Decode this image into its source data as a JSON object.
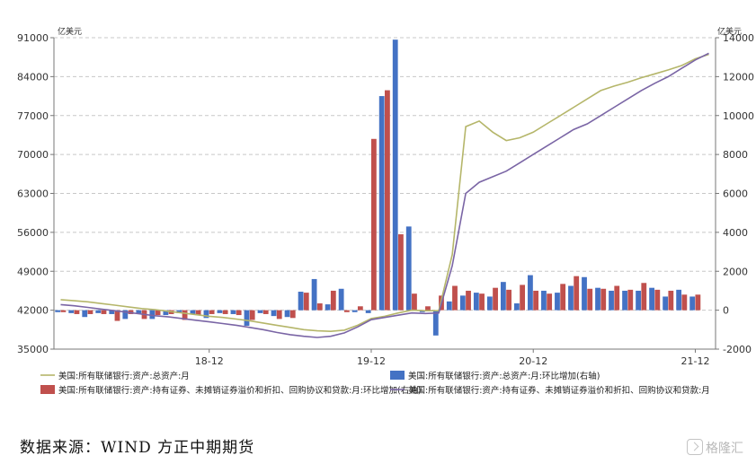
{
  "source_text": "数据来源：WIND 方正中期期货",
  "watermark": {
    "icon": "gelonghui-logo-icon",
    "text": "格隆汇"
  },
  "chart_data": {
    "type": "bar+line",
    "left_unit": "亿美元",
    "right_unit": "亿美元",
    "left_axis": {
      "min": 35000,
      "max": 91000,
      "ticks": [
        35000,
        42000,
        49000,
        56000,
        63000,
        70000,
        77000,
        84000,
        91000
      ]
    },
    "right_axis": {
      "min": -2000,
      "max": 14000,
      "ticks": [
        -2000,
        0,
        2000,
        4000,
        6000,
        8000,
        10000,
        12000,
        14000
      ]
    },
    "x_ticks": [
      {
        "label": "18-12",
        "index": 11
      },
      {
        "label": "19-12",
        "index": 23
      },
      {
        "label": "20-12",
        "index": 35
      },
      {
        "label": "21-12",
        "index": 47
      }
    ],
    "period_count": 49,
    "series": [
      {
        "name": "美国:所有联储银行:资产:总资产:月:环比增加(右轴)",
        "kind": "bar",
        "axis": "right",
        "color": "#4472c4",
        "values": [
          -100,
          -150,
          -350,
          -150,
          -200,
          -450,
          -200,
          -450,
          -250,
          -150,
          -200,
          -400,
          -150,
          -200,
          -800,
          -150,
          -300,
          -350,
          950,
          1600,
          300,
          1100,
          -100,
          -150,
          11000,
          13900,
          4300,
          -100,
          -1300,
          450,
          750,
          900,
          700,
          1450,
          350,
          1800,
          1000,
          900,
          1250,
          1700,
          1150,
          1000,
          1000,
          1000,
          1150,
          700,
          1050,
          700,
          0
        ]
      },
      {
        "name": "美国:所有联储银行:资产:持有证券、未摊销证券溢价和折扣、回购协议和贷款:月:环比增加(右轴)",
        "kind": "bar",
        "axis": "right",
        "color": "#c0504d",
        "values": [
          -100,
          -200,
          -200,
          -200,
          -550,
          -200,
          -450,
          -250,
          -200,
          -500,
          -250,
          -200,
          -200,
          -250,
          -500,
          -200,
          -450,
          -400,
          900,
          350,
          1000,
          -100,
          200,
          8800,
          11300,
          3900,
          850,
          200,
          750,
          1250,
          1000,
          850,
          1150,
          1050,
          1300,
          1000,
          850,
          1350,
          1750,
          1100,
          1100,
          1250,
          1050,
          1400,
          1050,
          1000,
          800,
          800,
          0
        ]
      },
      {
        "name": "美国:所有联储银行:资产:总资产:月",
        "kind": "line",
        "axis": "left",
        "color": "#b5b66a",
        "values": [
          43900,
          43700,
          43500,
          43200,
          42900,
          42600,
          42300,
          42100,
          41800,
          41500,
          41200,
          40900,
          40700,
          40400,
          40100,
          39700,
          39300,
          38900,
          38500,
          38300,
          38200,
          38400,
          39300,
          40500,
          40900,
          41500,
          42000,
          41900,
          41900,
          52000,
          75000,
          76000,
          74000,
          72500,
          73000,
          74000,
          75500,
          77000,
          78500,
          80000,
          81500,
          82300,
          83000,
          83800,
          84500,
          85200,
          86000,
          87200,
          88000
        ]
      },
      {
        "name": "美国:所有联储银行:资产:持有证券、未摊销证券溢价和折扣、回购协议和贷款:月",
        "kind": "line",
        "axis": "left",
        "color": "#7a65a5",
        "values": [
          43000,
          42800,
          42500,
          42200,
          41900,
          41600,
          41300,
          41000,
          40800,
          40500,
          40200,
          39900,
          39600,
          39300,
          38900,
          38500,
          38000,
          37600,
          37300,
          37100,
          37300,
          37900,
          39000,
          40300,
          40700,
          41100,
          41500,
          41400,
          41500,
          50000,
          63000,
          65000,
          66000,
          67000,
          68500,
          70000,
          71500,
          73000,
          74500,
          75500,
          77000,
          78500,
          80000,
          81500,
          82800,
          84000,
          85500,
          87000,
          88200
        ]
      }
    ],
    "legend": [
      {
        "label": "美国:所有联储银行:资产:总资产:月",
        "kind": "line",
        "color": "#b5b66a"
      },
      {
        "label": "美国:所有联储银行:资产:总资产:月:环比增加(右轴)",
        "kind": "bar",
        "color": "#4472c4"
      },
      {
        "label": "美国:所有联储银行:资产:持有证券、未摊销证券溢价和折扣、回购协议和贷款:月:环比增加(右轴)",
        "kind": "bar",
        "color": "#c0504d"
      },
      {
        "label": "美国:所有联储银行:资产:持有证券、未摊销证券溢价和折扣、回购协议和贷款:月",
        "kind": "line",
        "color": "#7a65a5"
      }
    ],
    "grid": "horizontal-dashed"
  }
}
